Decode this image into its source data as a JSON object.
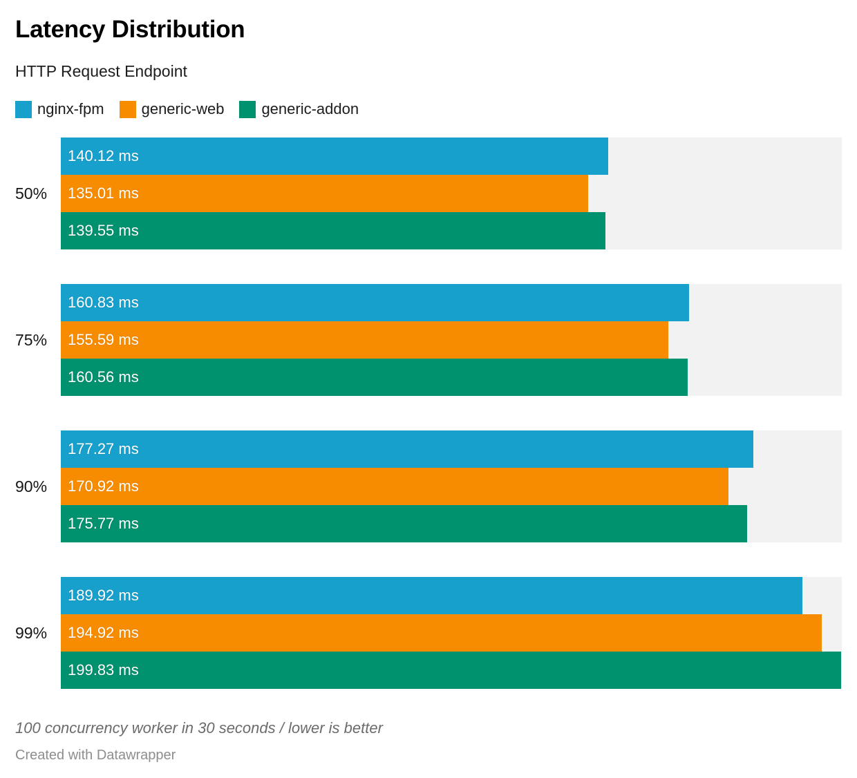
{
  "header": {
    "title": "Latency Distribution",
    "subtitle": "HTTP Request Endpoint"
  },
  "legend": {
    "items": [
      {
        "label": "nginx-fpm",
        "color": "#18a0cc"
      },
      {
        "label": "generic-web",
        "color": "#f88c00"
      },
      {
        "label": "generic-addon",
        "color": "#00916e"
      }
    ]
  },
  "chart_data": {
    "type": "bar",
    "orientation": "horizontal",
    "title": "Latency Distribution",
    "subtitle": "HTTP Request Endpoint",
    "unit": "ms",
    "categories": [
      "50%",
      "75%",
      "90%",
      "99%"
    ],
    "series": [
      {
        "name": "nginx-fpm",
        "color": "#18a0cc",
        "values": [
          140.12,
          160.83,
          177.27,
          189.92
        ],
        "labels": [
          "140.12 ms",
          "160.83 ms",
          "177.27 ms",
          "189.92 ms"
        ]
      },
      {
        "name": "generic-web",
        "color": "#f88c00",
        "values": [
          135.01,
          155.59,
          170.92,
          194.92
        ],
        "labels": [
          "135.01 ms",
          "155.59 ms",
          "170.92 ms",
          "194.92 ms"
        ]
      },
      {
        "name": "generic-addon",
        "color": "#00916e",
        "values": [
          139.55,
          160.56,
          175.77,
          199.83
        ],
        "labels": [
          "139.55 ms",
          "160.56 ms",
          "175.77 ms",
          "199.83 ms"
        ]
      }
    ],
    "xlim": [
      0,
      200
    ],
    "track_color": "#f2f2f2",
    "grid": false,
    "legend_position": "top",
    "value_labels_inside_bars": true,
    "lower_is_better": true
  },
  "footer": {
    "note": "100 concurrency worker in 30 seconds / lower is better",
    "credit": "Created with Datawrapper"
  }
}
